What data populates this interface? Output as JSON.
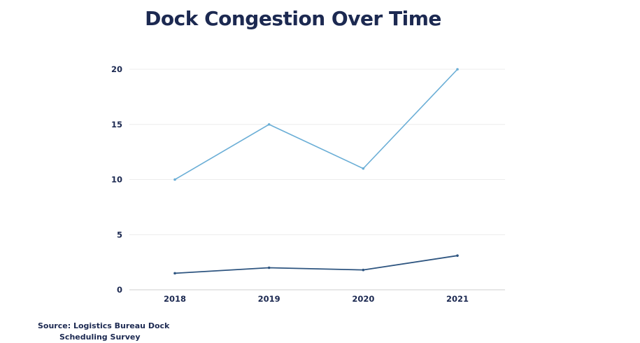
{
  "chart_data": {
    "type": "line",
    "title": "Dock Congestion Over Time",
    "xlabel": "",
    "ylabel": "",
    "categories": [
      "2018",
      "2019",
      "2020",
      "2021"
    ],
    "ylim": [
      0,
      20
    ],
    "yticks": [
      0,
      5,
      10,
      15,
      20
    ],
    "grid": true,
    "series": [
      {
        "values": [
          10,
          15,
          11,
          20
        ],
        "color": "#6aaed6"
      },
      {
        "values": [
          1.5,
          2.0,
          1.8,
          3.1
        ],
        "color": "#2e5580"
      }
    ]
  },
  "source": {
    "line1": "Source: Logistics Bureau Dock",
    "line2": "Scheduling Survey"
  }
}
